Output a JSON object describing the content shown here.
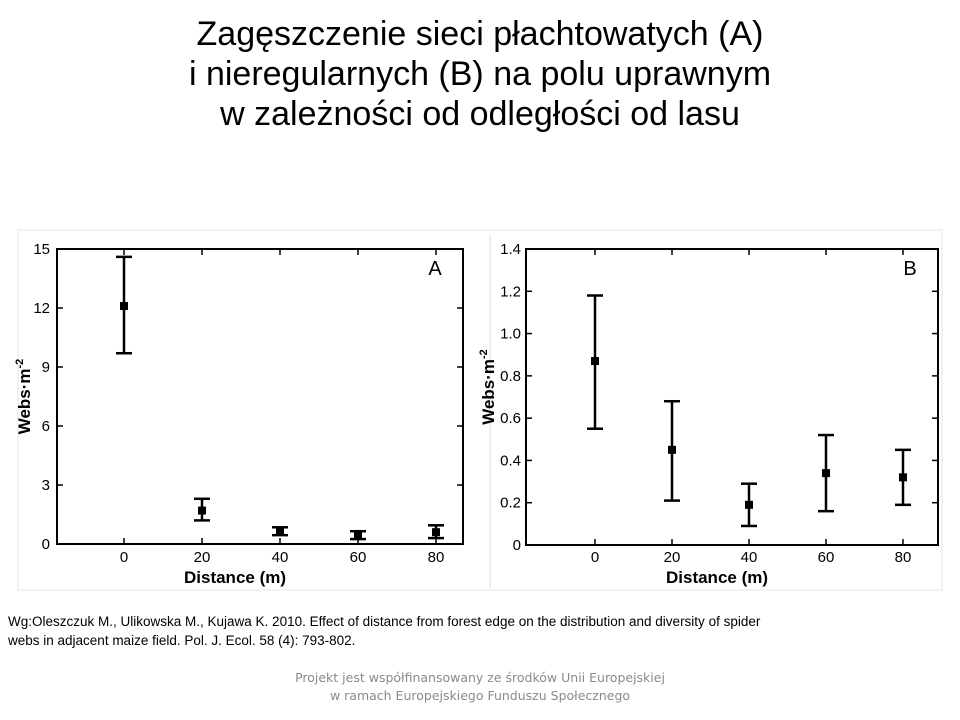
{
  "title": {
    "line1": "Zagęszczenie sieci płachtowatych (A)",
    "line2": "i nieregularnych (B) na polu uprawnym",
    "line3": "w zależności od odległości od lasu"
  },
  "citation": {
    "line1": "Wg:Oleszczuk M., Ulikowska M., Kujawa K. 2010. Effect of distance from forest edge on the distribution and diversity of spider",
    "line2": "webs in adjacent maize field. Pol. J. Ecol. 58 (4): 793-802."
  },
  "footer": {
    "line1": "Projekt jest współfinansowany ze środków Unii Europejskiej",
    "line2": "w ramach Europejskiego Funduszu Społecznego"
  },
  "chart_data": [
    {
      "type": "scatter",
      "panel_label": "A",
      "xlabel": "Distance (m)",
      "ylabel": "Webs·m",
      "ylabel_superscript": "-2",
      "x": [
        0,
        20,
        40,
        60,
        80
      ],
      "y": [
        12.1,
        1.7,
        0.65,
        0.45,
        0.6
      ],
      "error_low": [
        9.7,
        1.2,
        0.45,
        0.25,
        0.3
      ],
      "error_high": [
        14.6,
        2.3,
        0.85,
        0.65,
        0.95
      ],
      "xticks": [
        "0",
        "20",
        "40",
        "60",
        "80"
      ],
      "yticks": [
        "0",
        "3",
        "6",
        "9",
        "12",
        "15"
      ],
      "ylim": [
        0,
        15
      ],
      "grid": false
    },
    {
      "type": "scatter",
      "panel_label": "B",
      "xlabel": "Distance (m)",
      "ylabel": "Webs·m",
      "ylabel_superscript": "-2",
      "x": [
        0,
        20,
        40,
        60,
        80
      ],
      "y": [
        0.87,
        0.45,
        0.19,
        0.34,
        0.32
      ],
      "error_low": [
        0.55,
        0.21,
        0.09,
        0.16,
        0.19
      ],
      "error_high": [
        1.18,
        0.68,
        0.29,
        0.52,
        0.45
      ],
      "xticks": [
        "0",
        "20",
        "40",
        "60",
        "80"
      ],
      "yticks": [
        "0",
        "0.2",
        "0.4",
        "0.6",
        "0.8",
        "1.0",
        "1.2",
        "1.4"
      ],
      "ylim": [
        0,
        1.4
      ],
      "grid": false
    }
  ]
}
